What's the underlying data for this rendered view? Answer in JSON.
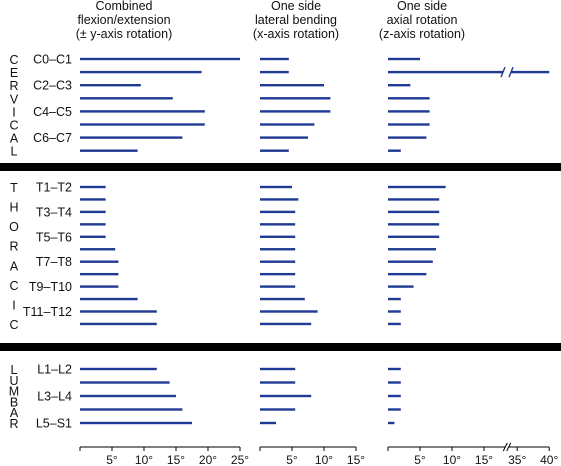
{
  "chart_data": {
    "type": "bar",
    "colors": {
      "bar": "#1f3a93",
      "separator": "#000000",
      "axis": "#000000",
      "text": "#111111"
    },
    "headers": [
      [
        "Combined",
        "flexion/extension",
        "(± y-axis rotation)"
      ],
      [
        "One side",
        "lateral bending",
        "(x-axis rotation)"
      ],
      [
        "One side",
        "axial rotation",
        "(z-axis rotation)"
      ]
    ],
    "panels": [
      {
        "ticks": [
          "5°",
          "10°",
          "15°",
          "20°",
          "25°"
        ],
        "tick_values": [
          5,
          10,
          15,
          20,
          25
        ],
        "xlim": [
          0,
          25
        ]
      },
      {
        "ticks": [
          "5°",
          "10°",
          "15°"
        ],
        "tick_values": [
          5,
          10,
          15
        ],
        "xlim": [
          0,
          15
        ]
      },
      {
        "ticks": [
          "5°",
          "10°",
          "15°",
          "35°",
          "40°"
        ],
        "tick_values": [
          5,
          10,
          15,
          35,
          40
        ],
        "xlim": [
          0,
          40
        ],
        "axis_break": [
          17,
          33
        ]
      }
    ],
    "regions": [
      {
        "letters": [
          "C",
          "E",
          "R",
          "V",
          "I",
          "C",
          "A",
          "L"
        ],
        "rows": [
          {
            "label": "C0–C1",
            "values": [
              25,
              4.5,
              5
            ]
          },
          {
            "label": "",
            "values": [
              19,
              4.5,
              40
            ]
          },
          {
            "label": "C2–C3",
            "values": [
              9.5,
              10,
              3.5
            ]
          },
          {
            "label": "",
            "values": [
              14.5,
              11,
              6.5
            ]
          },
          {
            "label": "C4–C5",
            "values": [
              19.5,
              11,
              6.5
            ]
          },
          {
            "label": "",
            "values": [
              19.5,
              8.5,
              6.5
            ]
          },
          {
            "label": "C6–C7",
            "values": [
              16,
              7.5,
              6
            ]
          },
          {
            "label": "",
            "values": [
              9,
              4.5,
              2
            ]
          }
        ]
      },
      {
        "letters": [
          "T",
          "H",
          "O",
          "R",
          "A",
          "C",
          "I",
          "C"
        ],
        "rows": [
          {
            "label": "T1–T2",
            "values": [
              4,
              5,
              9
            ]
          },
          {
            "label": "",
            "values": [
              4,
              6,
              8
            ]
          },
          {
            "label": "T3–T4",
            "values": [
              4,
              5.5,
              8
            ]
          },
          {
            "label": "",
            "values": [
              4,
              5.5,
              8
            ]
          },
          {
            "label": "T5–T6",
            "values": [
              4,
              5.5,
              8
            ]
          },
          {
            "label": "",
            "values": [
              5.5,
              5.5,
              7.5
            ]
          },
          {
            "label": "T7–T8",
            "values": [
              6,
              5.5,
              7
            ]
          },
          {
            "label": "",
            "values": [
              6,
              5.5,
              6
            ]
          },
          {
            "label": "T9–T10",
            "values": [
              6,
              5.5,
              4
            ]
          },
          {
            "label": "",
            "values": [
              9,
              7,
              2
            ]
          },
          {
            "label": "T11–T12",
            "values": [
              12,
              9,
              2
            ]
          },
          {
            "label": "",
            "values": [
              12,
              8,
              2
            ]
          }
        ]
      },
      {
        "letters": [
          "L",
          "U",
          "M",
          "B",
          "A",
          "R"
        ],
        "rows": [
          {
            "label": "L1–L2",
            "values": [
              12,
              5.5,
              2
            ]
          },
          {
            "label": "",
            "values": [
              14,
              5.5,
              2
            ]
          },
          {
            "label": "L3–L4",
            "values": [
              15,
              8,
              2
            ]
          },
          {
            "label": "",
            "values": [
              16,
              5.5,
              2
            ]
          },
          {
            "label": "L5–S1",
            "values": [
              17.5,
              2.5,
              1
            ]
          }
        ]
      }
    ]
  }
}
